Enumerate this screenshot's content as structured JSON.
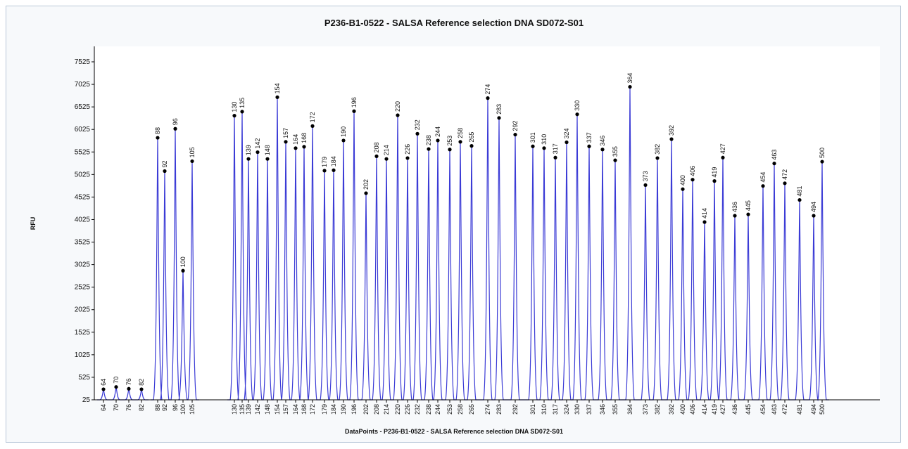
{
  "chart_data": {
    "type": "line",
    "title": "P236-B1-0522 - SALSA Reference selection DNA SD072-S01",
    "xlabel": "DataPoints - P236-B1-0522 - SALSA Reference selection DNA SD072-S01",
    "ylabel": "RFU",
    "ylim": [
      25,
      7825
    ],
    "yticks": [
      25,
      525,
      1025,
      1525,
      2025,
      2525,
      3025,
      3525,
      4025,
      4525,
      5025,
      5525,
      6025,
      6525,
      7025,
      7525
    ],
    "grid": false,
    "legend": "none",
    "series_color": "#3b3bd6",
    "peaks": [
      {
        "label": "64",
        "height": 260
      },
      {
        "label": "70",
        "height": 310
      },
      {
        "label": "76",
        "height": 270
      },
      {
        "label": "82",
        "height": 260
      },
      {
        "label": "88",
        "height": 5840
      },
      {
        "label": "92",
        "height": 5100
      },
      {
        "label": "96",
        "height": 6040
      },
      {
        "label": "100",
        "height": 2890
      },
      {
        "label": "105",
        "height": 5320
      },
      {
        "label": "130",
        "height": 6330
      },
      {
        "label": "135",
        "height": 6420
      },
      {
        "label": "139",
        "height": 5370
      },
      {
        "label": "142",
        "height": 5520
      },
      {
        "label": "148",
        "height": 5370
      },
      {
        "label": "154",
        "height": 6740
      },
      {
        "label": "157",
        "height": 5750
      },
      {
        "label": "164",
        "height": 5610
      },
      {
        "label": "168",
        "height": 5640
      },
      {
        "label": "172",
        "height": 6100
      },
      {
        "label": "179",
        "height": 5110
      },
      {
        "label": "184",
        "height": 5120
      },
      {
        "label": "190",
        "height": 5780
      },
      {
        "label": "196",
        "height": 6430
      },
      {
        "label": "202",
        "height": 4610
      },
      {
        "label": "208",
        "height": 5430
      },
      {
        "label": "214",
        "height": 5370
      },
      {
        "label": "220",
        "height": 6340
      },
      {
        "label": "226",
        "height": 5390
      },
      {
        "label": "232",
        "height": 5930
      },
      {
        "label": "238",
        "height": 5590
      },
      {
        "label": "244",
        "height": 5780
      },
      {
        "label": "253",
        "height": 5580
      },
      {
        "label": "258",
        "height": 5750
      },
      {
        "label": "265",
        "height": 5660
      },
      {
        "label": "274",
        "height": 6720
      },
      {
        "label": "283",
        "height": 6280
      },
      {
        "label": "292",
        "height": 5910
      },
      {
        "label": "301",
        "height": 5650
      },
      {
        "label": "310",
        "height": 5610
      },
      {
        "label": "317",
        "height": 5400
      },
      {
        "label": "324",
        "height": 5740
      },
      {
        "label": "330",
        "height": 6360
      },
      {
        "label": "337",
        "height": 5650
      },
      {
        "label": "346",
        "height": 5580
      },
      {
        "label": "355",
        "height": 5340
      },
      {
        "label": "364",
        "height": 6970
      },
      {
        "label": "373",
        "height": 4790
      },
      {
        "label": "382",
        "height": 5390
      },
      {
        "label": "392",
        "height": 5810
      },
      {
        "label": "400",
        "height": 4700
      },
      {
        "label": "406",
        "height": 4910
      },
      {
        "label": "414",
        "height": 3970
      },
      {
        "label": "419",
        "height": 4880
      },
      {
        "label": "427",
        "height": 5400
      },
      {
        "label": "436",
        "height": 4110
      },
      {
        "label": "445",
        "height": 4140
      },
      {
        "label": "454",
        "height": 4770
      },
      {
        "label": "463",
        "height": 5270
      },
      {
        "label": "472",
        "height": 4830
      },
      {
        "label": "481",
        "height": 4460
      },
      {
        "label": "494",
        "height": 4110
      },
      {
        "label": "500",
        "height": 5310
      }
    ]
  }
}
